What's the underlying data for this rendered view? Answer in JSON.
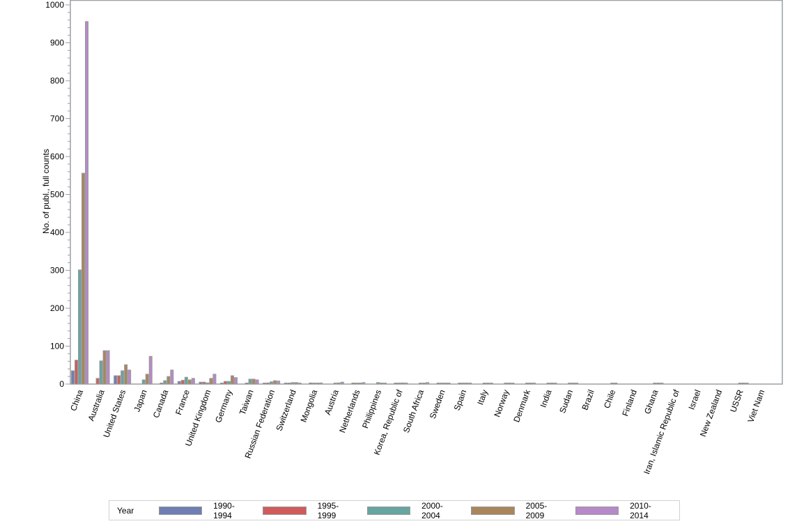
{
  "chart_data": {
    "type": "bar",
    "title": "",
    "xlabel": "",
    "ylabel": "No. of publ., full counts",
    "ylim": [
      0,
      1000
    ],
    "yticks": [
      0,
      100,
      200,
      300,
      400,
      500,
      600,
      700,
      800,
      900,
      1000
    ],
    "grid": false,
    "legend_position": "bottom",
    "legend_title": "Year",
    "categories": [
      "China",
      "Australia",
      "United States",
      "Japan",
      "Canada",
      "France",
      "United Kingdom",
      "Germany",
      "Taiwan",
      "Russian Federation",
      "Switzerland",
      "Mongolia",
      "Austria",
      "Netherlands",
      "Philippines",
      "Korea, Republic of",
      "South Africa",
      "Sweden",
      "Spain",
      "Italy",
      "Norway",
      "Denmark",
      "India",
      "Sudan",
      "Brazil",
      "Chile",
      "Finland",
      "Ghana",
      "Iran, Islamic Republic of",
      "Israel",
      "New Zealand",
      "USSR",
      "Viet Nam"
    ],
    "series": [
      {
        "name": "1990-1994",
        "color": "#6f7eb3",
        "values": [
          35,
          0,
          22,
          0,
          0,
          7,
          5,
          1,
          0,
          2,
          2,
          0,
          0,
          0,
          0,
          0,
          0,
          0,
          0,
          0,
          0,
          0,
          0,
          0,
          0,
          0,
          0,
          0,
          0,
          0,
          0,
          0,
          0
        ]
      },
      {
        "name": "1995-1999",
        "color": "#d05b5b",
        "values": [
          63,
          15,
          22,
          0,
          2,
          10,
          5,
          7,
          2,
          3,
          2,
          3,
          0,
          2,
          0,
          2,
          0,
          1,
          1,
          0,
          0,
          0,
          0,
          0,
          0,
          0,
          0,
          0,
          0,
          0,
          0,
          0,
          0
        ]
      },
      {
        "name": "2000-2004",
        "color": "#66a5a0",
        "values": [
          301,
          61,
          35,
          11,
          9,
          18,
          3,
          7,
          13,
          6,
          4,
          2,
          1,
          1,
          4,
          1,
          1,
          1,
          1,
          1,
          1,
          1,
          1,
          1,
          0,
          1,
          0,
          1,
          0,
          0,
          0,
          1,
          0
        ]
      },
      {
        "name": "2005-2009",
        "color": "#a9865b",
        "values": [
          556,
          88,
          51,
          26,
          20,
          11,
          15,
          22,
          13,
          9,
          4,
          1,
          3,
          1,
          1,
          3,
          1,
          1,
          1,
          1,
          1,
          1,
          1,
          1,
          0,
          1,
          0,
          1,
          0,
          0,
          0,
          1,
          0
        ]
      },
      {
        "name": "2010-2014",
        "color": "#b689c9",
        "values": [
          956,
          88,
          37,
          73,
          37,
          15,
          26,
          17,
          11,
          8,
          2,
          3,
          5,
          4,
          1,
          1,
          4,
          1,
          1,
          1,
          1,
          1,
          1,
          1,
          0,
          0,
          0,
          1,
          0,
          0,
          0,
          1,
          0
        ]
      }
    ]
  },
  "axis": {
    "ylabel": "No. of publ., full counts"
  },
  "legend": {
    "title": "Year",
    "items": [
      {
        "label": "1990-1994",
        "color": "#6f7eb3"
      },
      {
        "label": "1995-1999",
        "color": "#d05b5b"
      },
      {
        "label": "2000-2004",
        "color": "#66a5a0"
      },
      {
        "label": "2005-2009",
        "color": "#a9865b"
      },
      {
        "label": "2010-2014",
        "color": "#b689c9"
      }
    ]
  }
}
